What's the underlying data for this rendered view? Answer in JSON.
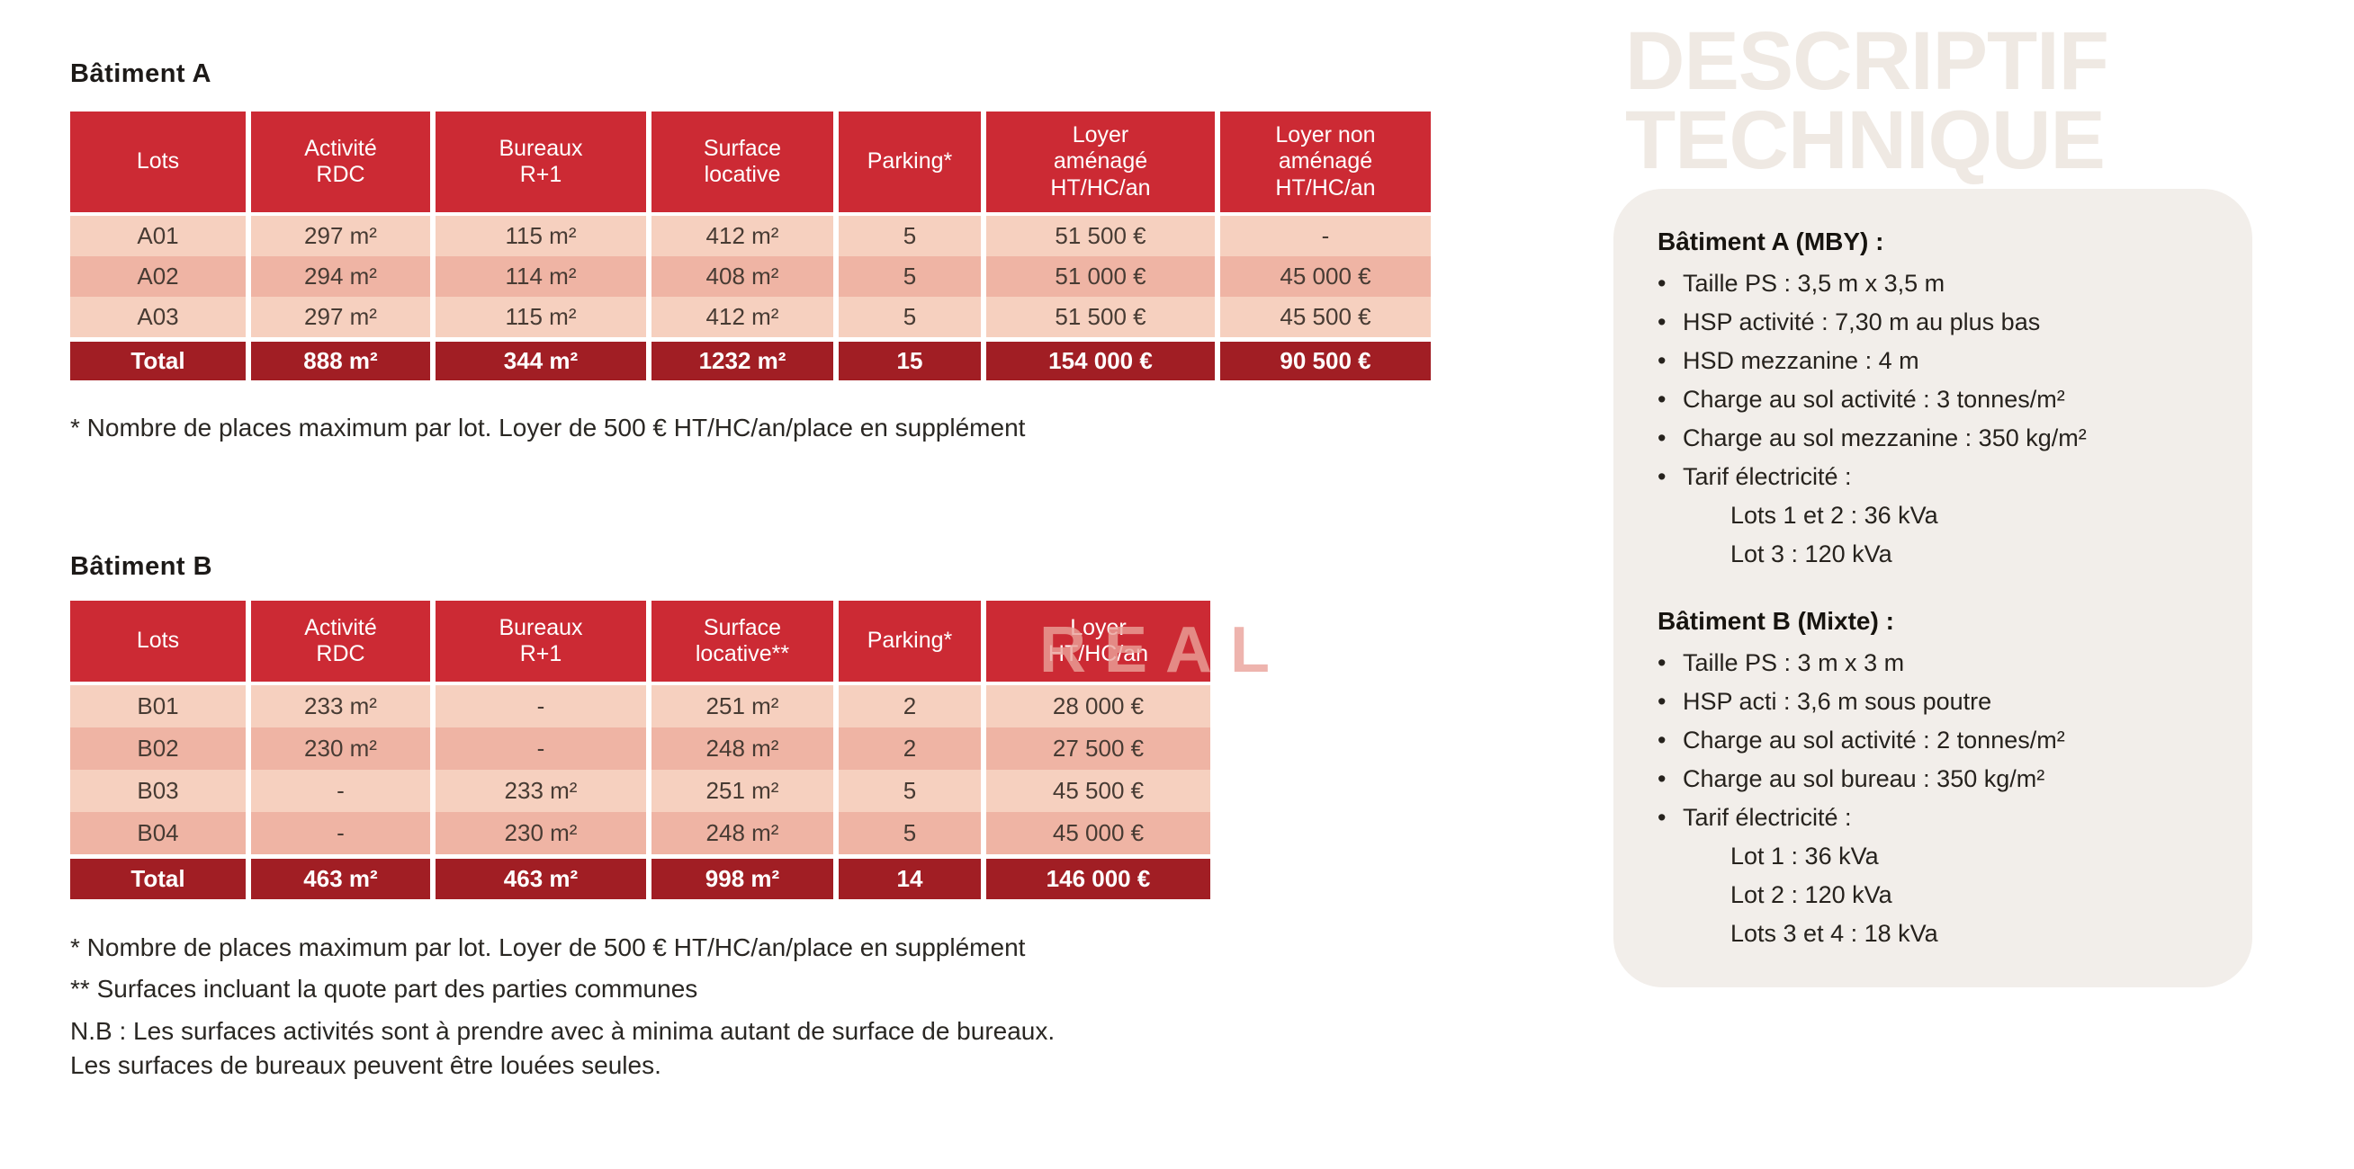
{
  "batiment_a": {
    "title": "Bâtiment A",
    "table": {
      "columns": [
        "Lots",
        "Activité\nRDC",
        "Bureaux\nR+1",
        "Surface\nlocative",
        "Parking*",
        "Loyer\naménagé\nHT/HC/an",
        "Loyer non\naménagé\nHT/HC/an"
      ],
      "rows": [
        [
          "A01",
          "297 m²",
          "115 m²",
          "412 m²",
          "5",
          "51 500 €",
          "-"
        ],
        [
          "A02",
          "294 m²",
          "114 m²",
          "408 m²",
          "5",
          "51 000 €",
          "45 000 €"
        ],
        [
          "A03",
          "297 m²",
          "115 m²",
          "412 m²",
          "5",
          "51 500 €",
          "45 500 €"
        ]
      ],
      "total": [
        "Total",
        "888 m²",
        "344 m²",
        "1232 m²",
        "15",
        "154 000 €",
        "90 500 €"
      ]
    },
    "footnote": "* Nombre de places maximum par lot. Loyer de 500 € HT/HC/an/place en supplément"
  },
  "batiment_b": {
    "title": "Bâtiment B",
    "table": {
      "columns": [
        "Lots",
        "Activité\nRDC",
        "Bureaux\nR+1",
        "Surface\nlocative**",
        "Parking*",
        "Loyer\nHT/HC/an"
      ],
      "rows": [
        [
          "B01",
          "233 m²",
          "-",
          "251 m²",
          "2",
          "28 000 €"
        ],
        [
          "B02",
          "230 m²",
          "-",
          "248 m²",
          "2",
          "27 500 €"
        ],
        [
          "B03",
          "-",
          "233 m²",
          "251 m²",
          "5",
          "45 500 €"
        ],
        [
          "B04",
          "-",
          "230 m²",
          "248 m²",
          "5",
          "45 000 €"
        ]
      ],
      "total": [
        "Total",
        "463 m²",
        "463 m²",
        "998 m²",
        "14",
        "146 000 €"
      ]
    },
    "footnotes": [
      "* Nombre de places maximum par lot. Loyer de 500 € HT/HC/an/place en supplément",
      "** Surfaces incluant la quote part des parties communes"
    ],
    "nb": [
      "N.B : Les surfaces activités sont à prendre avec à minima autant de surface de bureaux.",
      "Les surfaces de bureaux peuvent être louées seules."
    ]
  },
  "watermark": "REAL",
  "descriptif": {
    "ghost_title": [
      "DESCRIPTIF",
      "TECHNIQUE"
    ],
    "bullet_char": "•",
    "sections": [
      {
        "heading": "Bâtiment A (MBY) :",
        "bullets": [
          "Taille PS : 3,5 m x 3,5 m",
          "HSP activité : 7,30 m au plus bas",
          "HSD mezzanine : 4 m",
          "Charge au sol activité : 3 tonnes/m²",
          "Charge au sol mezzanine : 350 kg/m²",
          "Tarif électricité :"
        ],
        "sub_lines": [
          "Lots 1 et 2 : 36 kVa",
          "Lot 3 : 120 kVa"
        ]
      },
      {
        "heading": "Bâtiment B (Mixte) :",
        "bullets": [
          "Taille PS : 3 m x 3 m",
          "HSP acti : 3,6 m sous poutre",
          "Charge au sol activité : 2 tonnes/m²",
          "Charge au sol bureau : 350 kg/m²",
          "Tarif électricité :"
        ],
        "sub_lines": [
          "Lot 1 : 36 kVa",
          "Lot 2 : 120 kVa",
          "Lots 3 et 4 : 18 kVa"
        ]
      }
    ]
  },
  "colors": {
    "table_header_red": "#cc2a34",
    "table_total_red": "#a11e24",
    "row_pink_light": "#f6d0bf",
    "row_pink_dark": "#efb4a4",
    "panel_beige": "#f2eeea",
    "ghost_title": "#efe9e3",
    "watermark_pink": "#eaa29a"
  }
}
